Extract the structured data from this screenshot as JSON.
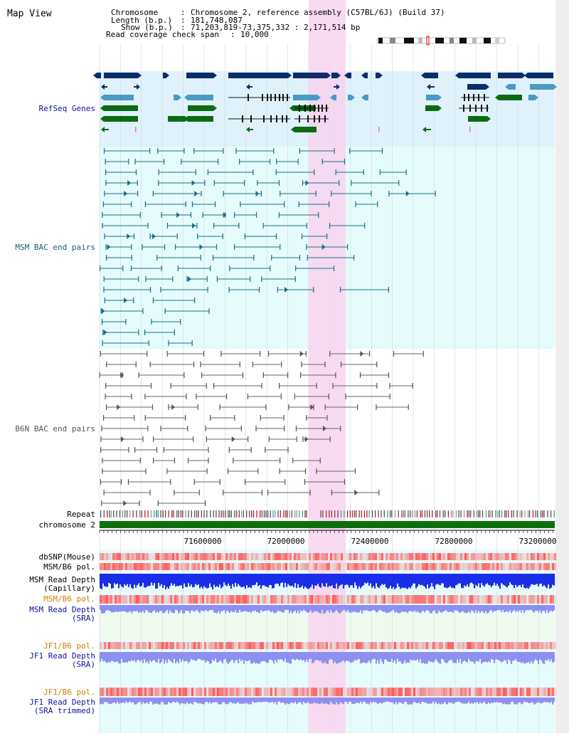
{
  "title": "Map View",
  "header": {
    "chromosome_label": "Chromosome",
    "chromosome_value": "Chromosome 2, reference assembly (C57BL/6J) (Build 37)",
    "length_label": "Length (b.p.)",
    "length_value": "181,748,087",
    "show_label": "Show (b.p.)",
    "show_value": "71,203,819-73,375,332 : 2,171,514 bp",
    "coverage_label": "Read coverage check span",
    "coverage_value": "10,000"
  },
  "tracks": {
    "refseq": "RefSeq Genes",
    "msm_bac": "MSM BAC end pairs",
    "b6n_bac": "B6N BAC end pairs",
    "repeat": "Repeat",
    "chromosome": "chromosome 2",
    "dbsnp": "dbSNP(Mouse)",
    "msm_b6_pol": "MSM/B6 pol.",
    "msm_depth_cap_1": "MSM Read Depth",
    "msm_depth_cap_2": "(Capillary)",
    "msm_b6_pol2": "MSM/B6 pol.",
    "msm_depth_sra_1": "MSM Read Depth",
    "msm_depth_sra_2": "(SRA)",
    "jf1_b6_pol": "JF1/B6 pol.",
    "jf1_depth_sra_1": "JF1 Read Depth",
    "jf1_depth_sra_2": "(SRA)",
    "jf1_b6_pol2": "JF1/B6 pol.",
    "jf1_depth_trim_1": "JF1 Read Depth",
    "jf1_depth_trim_2": "(SRA trimmed)"
  },
  "axis": {
    "ticks": [
      "71600000",
      "72000000",
      "72400000",
      "72800000",
      "73200000"
    ]
  },
  "colors": {
    "refseq_bg": "#dff2fb",
    "bac_bg": "#e6fbfb",
    "highlight": "#f7d3f0",
    "refseq_dark": "#0b2d6b",
    "refseq_mid": "#4a9ac4",
    "refseq_green": "#0c6a12",
    "msm_line": "#1a6f86",
    "b6n_line": "#666666",
    "chromosome_bar": "#0d6e0d",
    "blue_label": "#1010a0",
    "teal_label": "#17606f",
    "orange_label": "#d08000"
  }
}
